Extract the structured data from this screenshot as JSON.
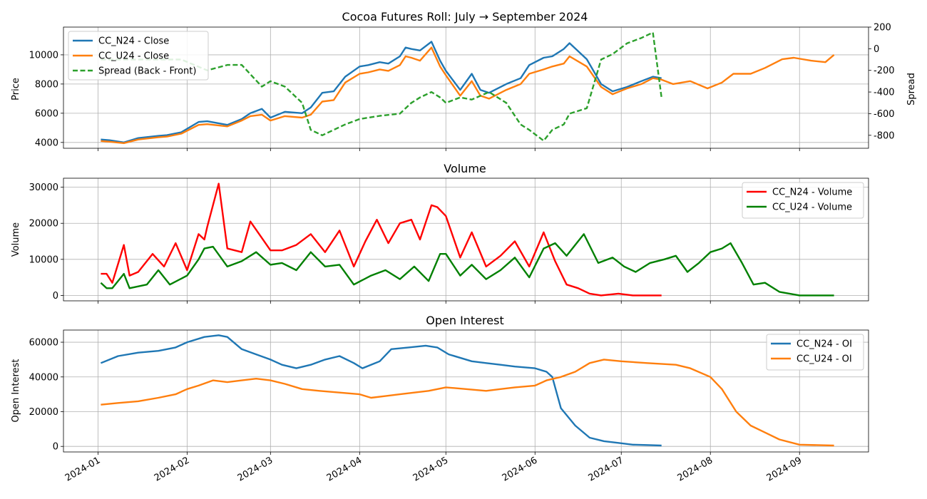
{
  "figure": {
    "title": "Cocoa Futures Roll: July → September 2024"
  },
  "colors": {
    "n24": "#1f77b4",
    "u24": "#ff7f0e",
    "spread": "#2ca02c",
    "n24_volume": "#ff0000",
    "u24_volume": "#008000"
  },
  "chart_data": [
    {
      "type": "line",
      "title": "Cocoa Futures Roll: July → September 2024",
      "xlabel": "",
      "ylabel": "Price",
      "y2label": "Spread",
      "xlim": [
        "2023-12-20",
        "2024-09-25"
      ],
      "ylim": [
        3600,
        11900
      ],
      "y2lim": [
        -920,
        200
      ],
      "yticks": [
        4000,
        6000,
        8000,
        10000
      ],
      "y2ticks": [
        -800,
        -600,
        -400,
        -200,
        0,
        200
      ],
      "legend_loc": "upper-left",
      "grid": true,
      "series": [
        {
          "name": "CC_N24 - Close",
          "axis": "left",
          "style": "solid",
          "color": "#1f77b4",
          "x": [
            "2024-01-02",
            "2024-01-05",
            "2024-01-10",
            "2024-01-15",
            "2024-01-22",
            "2024-01-25",
            "2024-01-30",
            "2024-02-05",
            "2024-02-08",
            "2024-02-15",
            "2024-02-20",
            "2024-02-23",
            "2024-02-27",
            "2024-03-01",
            "2024-03-06",
            "2024-03-12",
            "2024-03-15",
            "2024-03-19",
            "2024-03-23",
            "2024-03-27",
            "2024-04-01",
            "2024-04-04",
            "2024-04-08",
            "2024-04-11",
            "2024-04-15",
            "2024-04-17",
            "2024-04-19",
            "2024-04-22",
            "2024-04-26",
            "2024-04-29",
            "2024-05-01",
            "2024-05-06",
            "2024-05-10",
            "2024-05-13",
            "2024-05-16",
            "2024-05-22",
            "2024-05-27",
            "2024-05-30",
            "2024-06-04",
            "2024-06-07",
            "2024-06-11",
            "2024-06-13",
            "2024-06-19",
            "2024-06-24",
            "2024-06-28",
            "2024-07-03",
            "2024-07-08",
            "2024-07-12",
            "2024-07-15"
          ],
          "y": [
            4200,
            4150,
            4000,
            4300,
            4450,
            4500,
            4700,
            5400,
            5450,
            5200,
            5600,
            6000,
            6300,
            5700,
            6100,
            6000,
            6400,
            7400,
            7500,
            8500,
            9200,
            9300,
            9500,
            9400,
            9900,
            10500,
            10400,
            10300,
            10900,
            9600,
            8900,
            7600,
            8700,
            7600,
            7400,
            8000,
            8400,
            9300,
            9800,
            9900,
            10400,
            10800,
            9700,
            8000,
            7500,
            7800,
            8200,
            8500,
            8400
          ]
        },
        {
          "name": "CC_U24 - Close",
          "axis": "left",
          "style": "solid",
          "color": "#ff7f0e",
          "x": [
            "2024-01-02",
            "2024-01-05",
            "2024-01-10",
            "2024-01-15",
            "2024-01-22",
            "2024-01-25",
            "2024-01-30",
            "2024-02-05",
            "2024-02-08",
            "2024-02-15",
            "2024-02-20",
            "2024-02-23",
            "2024-02-27",
            "2024-03-01",
            "2024-03-06",
            "2024-03-12",
            "2024-03-15",
            "2024-03-19",
            "2024-03-23",
            "2024-03-27",
            "2024-04-01",
            "2024-04-04",
            "2024-04-08",
            "2024-04-11",
            "2024-04-15",
            "2024-04-17",
            "2024-04-19",
            "2024-04-22",
            "2024-04-26",
            "2024-04-29",
            "2024-05-01",
            "2024-05-06",
            "2024-05-10",
            "2024-05-13",
            "2024-05-16",
            "2024-05-22",
            "2024-05-27",
            "2024-05-30",
            "2024-06-04",
            "2024-06-07",
            "2024-06-11",
            "2024-06-13",
            "2024-06-19",
            "2024-06-24",
            "2024-06-28",
            "2024-07-03",
            "2024-07-08",
            "2024-07-12",
            "2024-07-15",
            "2024-07-19",
            "2024-07-25",
            "2024-07-31",
            "2024-08-05",
            "2024-08-09",
            "2024-08-15",
            "2024-08-20",
            "2024-08-26",
            "2024-08-30",
            "2024-09-05",
            "2024-09-10",
            "2024-09-13"
          ],
          "y": [
            4100,
            4050,
            3950,
            4200,
            4350,
            4400,
            4600,
            5200,
            5250,
            5100,
            5500,
            5800,
            5900,
            5500,
            5800,
            5700,
            5900,
            6800,
            6900,
            8100,
            8700,
            8800,
            9000,
            8900,
            9300,
            9900,
            9800,
            9600,
            10500,
            9200,
            8600,
            7200,
            8200,
            7200,
            7000,
            7600,
            8000,
            8700,
            9000,
            9200,
            9400,
            9900,
            9200,
            7800,
            7300,
            7700,
            8000,
            8400,
            8300,
            8000,
            8200,
            7700,
            8100,
            8700,
            8700,
            9100,
            9700,
            9800,
            9600,
            9500,
            10000
          ]
        },
        {
          "name": "Spread (Back - Front)",
          "axis": "right",
          "style": "dashed",
          "color": "#2ca02c",
          "x": [
            "2024-01-02",
            "2024-01-15",
            "2024-01-30",
            "2024-02-08",
            "2024-02-15",
            "2024-02-20",
            "2024-02-27",
            "2024-03-01",
            "2024-03-06",
            "2024-03-12",
            "2024-03-15",
            "2024-03-19",
            "2024-03-27",
            "2024-04-01",
            "2024-04-08",
            "2024-04-15",
            "2024-04-19",
            "2024-04-22",
            "2024-04-26",
            "2024-04-29",
            "2024-05-01",
            "2024-05-06",
            "2024-05-10",
            "2024-05-16",
            "2024-05-22",
            "2024-05-27",
            "2024-05-30",
            "2024-06-04",
            "2024-06-07",
            "2024-06-11",
            "2024-06-13",
            "2024-06-19",
            "2024-06-24",
            "2024-06-28",
            "2024-07-03",
            "2024-07-08",
            "2024-07-12",
            "2024-07-15"
          ],
          "y": [
            -100,
            -100,
            -100,
            -200,
            -150,
            -150,
            -350,
            -300,
            -350,
            -500,
            -750,
            -800,
            -700,
            -650,
            -620,
            -600,
            -500,
            -450,
            -400,
            -450,
            -500,
            -450,
            -470,
            -400,
            -500,
            -700,
            -750,
            -850,
            -750,
            -700,
            -600,
            -550,
            -100,
            -50,
            50,
            100,
            150,
            -450
          ]
        }
      ]
    },
    {
      "type": "line",
      "title": "Volume",
      "xlabel": "",
      "ylabel": "Volume",
      "xlim": [
        "2023-12-20",
        "2024-09-25"
      ],
      "ylim": [
        -1500,
        32500
      ],
      "yticks": [
        0,
        10000,
        20000,
        30000
      ],
      "legend_loc": "upper-right",
      "grid": true,
      "series": [
        {
          "name": "CC_N24 - Volume",
          "axis": "left",
          "style": "solid",
          "color": "#ff0000",
          "x": [
            "2024-01-02",
            "2024-01-04",
            "2024-01-06",
            "2024-01-10",
            "2024-01-12",
            "2024-01-15",
            "2024-01-20",
            "2024-01-24",
            "2024-01-28",
            "2024-02-01",
            "2024-02-05",
            "2024-02-07",
            "2024-02-08",
            "2024-02-12",
            "2024-02-15",
            "2024-02-20",
            "2024-02-23",
            "2024-03-01",
            "2024-03-05",
            "2024-03-10",
            "2024-03-15",
            "2024-03-20",
            "2024-03-25",
            "2024-03-30",
            "2024-04-03",
            "2024-04-07",
            "2024-04-11",
            "2024-04-15",
            "2024-04-19",
            "2024-04-22",
            "2024-04-26",
            "2024-04-28",
            "2024-05-01",
            "2024-05-06",
            "2024-05-10",
            "2024-05-15",
            "2024-05-20",
            "2024-05-25",
            "2024-05-30",
            "2024-06-04",
            "2024-06-08",
            "2024-06-12",
            "2024-06-16",
            "2024-06-20",
            "2024-06-24",
            "2024-06-30",
            "2024-07-05",
            "2024-07-10",
            "2024-07-15"
          ],
          "y": [
            6000,
            6000,
            3500,
            14000,
            5500,
            6500,
            11500,
            8000,
            14500,
            7000,
            17000,
            15500,
            19000,
            31000,
            13000,
            12000,
            20500,
            12500,
            12500,
            14000,
            17000,
            12000,
            18000,
            8000,
            15000,
            21000,
            14500,
            20000,
            21000,
            15500,
            25000,
            24500,
            22000,
            10500,
            17500,
            8000,
            11000,
            15000,
            8000,
            17500,
            9500,
            3000,
            2000,
            500,
            0,
            500,
            0,
            0,
            0
          ]
        },
        {
          "name": "CC_U24 - Volume",
          "axis": "left",
          "style": "solid",
          "color": "#008000",
          "x": [
            "2024-01-02",
            "2024-01-04",
            "2024-01-06",
            "2024-01-10",
            "2024-01-12",
            "2024-01-18",
            "2024-01-22",
            "2024-01-26",
            "2024-02-01",
            "2024-02-05",
            "2024-02-07",
            "2024-02-10",
            "2024-02-15",
            "2024-02-20",
            "2024-02-25",
            "2024-03-01",
            "2024-03-05",
            "2024-03-10",
            "2024-03-15",
            "2024-03-20",
            "2024-03-25",
            "2024-03-30",
            "2024-04-05",
            "2024-04-10",
            "2024-04-15",
            "2024-04-20",
            "2024-04-25",
            "2024-04-29",
            "2024-05-01",
            "2024-05-06",
            "2024-05-10",
            "2024-05-15",
            "2024-05-20",
            "2024-05-25",
            "2024-05-30",
            "2024-06-04",
            "2024-06-08",
            "2024-06-12",
            "2024-06-18",
            "2024-06-23",
            "2024-06-28",
            "2024-07-02",
            "2024-07-06",
            "2024-07-11",
            "2024-07-16",
            "2024-07-20",
            "2024-07-24",
            "2024-07-28",
            "2024-08-01",
            "2024-08-05",
            "2024-08-08",
            "2024-08-12",
            "2024-08-16",
            "2024-08-20",
            "2024-08-25",
            "2024-09-01",
            "2024-09-13"
          ],
          "y": [
            3500,
            2000,
            2000,
            6000,
            2000,
            3000,
            7000,
            3000,
            5500,
            10000,
            13000,
            13500,
            8000,
            9500,
            12000,
            8500,
            9000,
            7000,
            12000,
            8000,
            8500,
            3000,
            5500,
            7000,
            4500,
            8000,
            4000,
            11500,
            11500,
            5500,
            8500,
            4500,
            7000,
            10500,
            5000,
            13000,
            14500,
            11000,
            17000,
            9000,
            10500,
            8000,
            6500,
            9000,
            10000,
            11000,
            6500,
            9000,
            12000,
            13000,
            14500,
            9000,
            3000,
            3500,
            1000,
            0,
            0
          ]
        }
      ]
    },
    {
      "type": "line",
      "title": "Open Interest",
      "xlabel": "",
      "ylabel": "Open Interest",
      "xlim": [
        "2023-12-20",
        "2024-09-25"
      ],
      "ylim": [
        -3200,
        67000
      ],
      "yticks": [
        0,
        20000,
        40000,
        60000
      ],
      "legend_loc": "upper-right",
      "grid": true,
      "series": [
        {
          "name": "CC_N24 - OI",
          "axis": "left",
          "style": "solid",
          "color": "#1f77b4",
          "x": [
            "2024-01-02",
            "2024-01-08",
            "2024-01-15",
            "2024-01-22",
            "2024-01-28",
            "2024-02-01",
            "2024-02-07",
            "2024-02-12",
            "2024-02-15",
            "2024-02-20",
            "2024-02-25",
            "2024-03-01",
            "2024-03-05",
            "2024-03-10",
            "2024-03-15",
            "2024-03-20",
            "2024-03-25",
            "2024-03-30",
            "2024-04-02",
            "2024-04-08",
            "2024-04-12",
            "2024-04-18",
            "2024-04-24",
            "2024-04-28",
            "2024-05-02",
            "2024-05-10",
            "2024-05-15",
            "2024-05-20",
            "2024-05-25",
            "2024-06-01",
            "2024-06-05",
            "2024-06-07",
            "2024-06-10",
            "2024-06-15",
            "2024-06-20",
            "2024-06-25",
            "2024-06-30",
            "2024-07-05",
            "2024-07-10",
            "2024-07-15"
          ],
          "y": [
            48000,
            52000,
            54000,
            55000,
            57000,
            60000,
            63000,
            64000,
            63000,
            56000,
            53000,
            50000,
            47000,
            45000,
            47000,
            50000,
            52000,
            48000,
            45000,
            49000,
            56000,
            57000,
            58000,
            57000,
            53000,
            49000,
            48000,
            47000,
            46000,
            45000,
            43000,
            40000,
            22000,
            12000,
            5000,
            3000,
            2000,
            1000,
            800,
            500
          ]
        },
        {
          "name": "CC_U24 - OI",
          "axis": "left",
          "style": "solid",
          "color": "#ff7f0e",
          "x": [
            "2024-01-02",
            "2024-01-08",
            "2024-01-15",
            "2024-01-22",
            "2024-01-28",
            "2024-02-01",
            "2024-02-05",
            "2024-02-10",
            "2024-02-15",
            "2024-02-20",
            "2024-02-25",
            "2024-03-01",
            "2024-03-06",
            "2024-03-12",
            "2024-03-18",
            "2024-03-25",
            "2024-04-01",
            "2024-04-05",
            "2024-04-10",
            "2024-04-15",
            "2024-04-20",
            "2024-04-25",
            "2024-05-01",
            "2024-05-08",
            "2024-05-15",
            "2024-05-20",
            "2024-05-25",
            "2024-06-01",
            "2024-06-05",
            "2024-06-10",
            "2024-06-15",
            "2024-06-20",
            "2024-06-25",
            "2024-07-01",
            "2024-07-10",
            "2024-07-20",
            "2024-07-25",
            "2024-08-01",
            "2024-08-05",
            "2024-08-10",
            "2024-08-15",
            "2024-08-20",
            "2024-08-25",
            "2024-09-01",
            "2024-09-13"
          ],
          "y": [
            24000,
            25000,
            26000,
            28000,
            30000,
            33000,
            35000,
            38000,
            37000,
            38000,
            39000,
            38000,
            36000,
            33000,
            32000,
            31000,
            30000,
            28000,
            29000,
            30000,
            31000,
            32000,
            34000,
            33000,
            32000,
            33000,
            34000,
            35000,
            38000,
            40000,
            43000,
            48000,
            50000,
            49000,
            48000,
            47000,
            45000,
            40000,
            33000,
            20000,
            12000,
            8000,
            4000,
            1000,
            500
          ]
        }
      ]
    }
  ],
  "xaxis": {
    "tick_labels": [
      "2024-01",
      "2024-02",
      "2024-03",
      "2024-04",
      "2024-05",
      "2024-06",
      "2024-07",
      "2024-08",
      "2024-09"
    ],
    "tick_dates": [
      "2024-01-01",
      "2024-02-01",
      "2024-03-01",
      "2024-04-01",
      "2024-05-01",
      "2024-06-01",
      "2024-07-01",
      "2024-08-01",
      "2024-09-01"
    ]
  }
}
